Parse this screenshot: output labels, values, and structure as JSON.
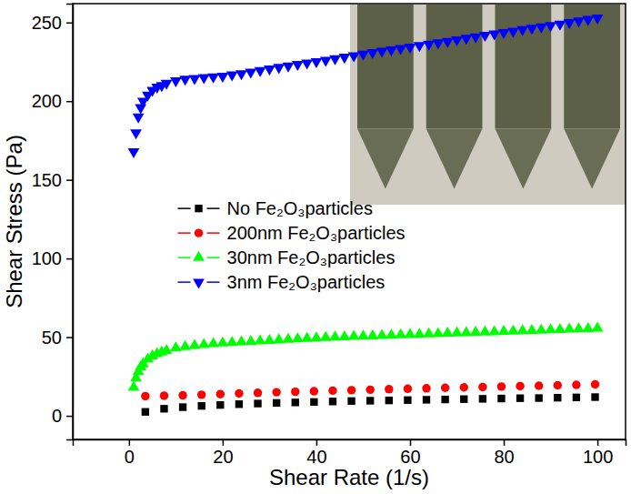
{
  "chart_data": {
    "type": "scatter",
    "xlabel": "Shear Rate (1/s)",
    "ylabel": "Shear Stress (Pa)",
    "xlim": [
      -12,
      106
    ],
    "xticks": [
      0,
      20,
      40,
      60,
      80,
      100
    ],
    "ylim": [
      -15,
      262
    ],
    "yticks": [
      0,
      50,
      100,
      150,
      200,
      250
    ],
    "grid": false,
    "legend": "left",
    "series": [
      {
        "name": "No Fe₂O₃particles",
        "color": "#000000",
        "marker": "square",
        "x": [
          3.5,
          7.5,
          11.5,
          15.5,
          19.5,
          23.5,
          27.5,
          31.5,
          35.5,
          39.5,
          43.5,
          47.5,
          51.5,
          55.5,
          59.5,
          63.5,
          67.5,
          71.5,
          75.5,
          79.5,
          83.5,
          87.5,
          91.5,
          95.5,
          99.5
        ],
        "values": [
          2.5,
          4.5,
          5.5,
          6.3,
          6.9,
          7.4,
          7.8,
          8.2,
          8.5,
          8.8,
          9.1,
          9.4,
          9.6,
          9.8,
          10,
          10.2,
          10.4,
          10.6,
          10.8,
          11,
          11.2,
          11.3,
          11.5,
          11.7,
          11.9
        ]
      },
      {
        "name": "200nm Fe₂O₃particles",
        "color": "#ff0000",
        "marker": "circle",
        "x": [
          3.5,
          7.5,
          11.5,
          15.5,
          19.5,
          23.5,
          27.5,
          31.5,
          35.5,
          39.5,
          43.5,
          47.5,
          51.5,
          55.5,
          59.5,
          63.5,
          67.5,
          71.5,
          75.5,
          79.5,
          83.5,
          87.5,
          91.5,
          95.5,
          99.5
        ],
        "values": [
          12.5,
          12.8,
          13,
          13.4,
          13.8,
          14.2,
          14.6,
          15,
          15.3,
          15.6,
          16,
          16.3,
          16.6,
          16.9,
          17.2,
          17.5,
          17.8,
          18.1,
          18.3,
          18.6,
          18.9,
          19.1,
          19.4,
          19.7,
          20
        ]
      },
      {
        "name": "30nm Fe₂O₃particles",
        "color": "#00ff00",
        "marker": "triangle-up",
        "x": [
          1,
          1.5,
          2,
          2.5,
          3,
          4,
          5,
          6,
          7,
          8,
          10,
          12,
          14,
          16,
          18,
          20,
          22,
          24,
          26,
          28,
          30,
          32,
          34,
          36,
          38,
          40,
          42,
          44,
          46,
          48,
          50,
          52,
          54,
          56,
          58,
          60,
          62,
          64,
          66,
          68,
          70,
          72,
          74,
          76,
          78,
          80,
          82,
          84,
          86,
          88,
          90,
          92,
          94,
          96,
          98,
          100
        ],
        "values": [
          18,
          24,
          28,
          31,
          33,
          36,
          38,
          39.5,
          40.5,
          41.5,
          43,
          44,
          44.7,
          45.3,
          45.8,
          46.2,
          46.6,
          47,
          47.3,
          47.6,
          47.9,
          48.2,
          48.5,
          48.8,
          49.1,
          49.4,
          49.7,
          50,
          50.2,
          50.4,
          50.6,
          50.8,
          51,
          51.2,
          51.4,
          51.6,
          51.8,
          52,
          52.2,
          52.4,
          52.6,
          52.8,
          53,
          53.2,
          53.4,
          53.6,
          53.8,
          54,
          54.2,
          54.4,
          54.6,
          54.8,
          55,
          55.2,
          55.4,
          55.6
        ]
      },
      {
        "name": "3nm Fe₂O₃particles",
        "color": "#0000ff",
        "marker": "triangle-down",
        "x": [
          1,
          1.5,
          2,
          2.5,
          3,
          4,
          5,
          6,
          7,
          8,
          10,
          12,
          14,
          16,
          18,
          20,
          22,
          24,
          26,
          28,
          30,
          32,
          34,
          36,
          38,
          40,
          42,
          44,
          46,
          48,
          50,
          52,
          54,
          56,
          58,
          60,
          62,
          64,
          66,
          68,
          70,
          72,
          74,
          76,
          78,
          80,
          82,
          84,
          86,
          88,
          90,
          92,
          94,
          96,
          98,
          100
        ],
        "values": [
          168,
          180,
          190,
          196,
          200,
          204,
          207,
          209,
          210,
          211.5,
          213,
          214,
          214.5,
          215,
          215.5,
          216,
          216.8,
          217.5,
          218.5,
          219.5,
          220.5,
          221.5,
          222.5,
          223.4,
          224.3,
          225.2,
          226.1,
          227,
          228,
          229,
          230,
          230.9,
          231.8,
          232.7,
          233.6,
          234.5,
          235.4,
          236.3,
          237.2,
          238.1,
          239,
          240,
          241,
          241.9,
          242.8,
          243.7,
          244.6,
          245.5,
          246.4,
          247.3,
          248.2,
          249.1,
          250,
          251,
          252,
          253
        ]
      }
    ]
  }
}
